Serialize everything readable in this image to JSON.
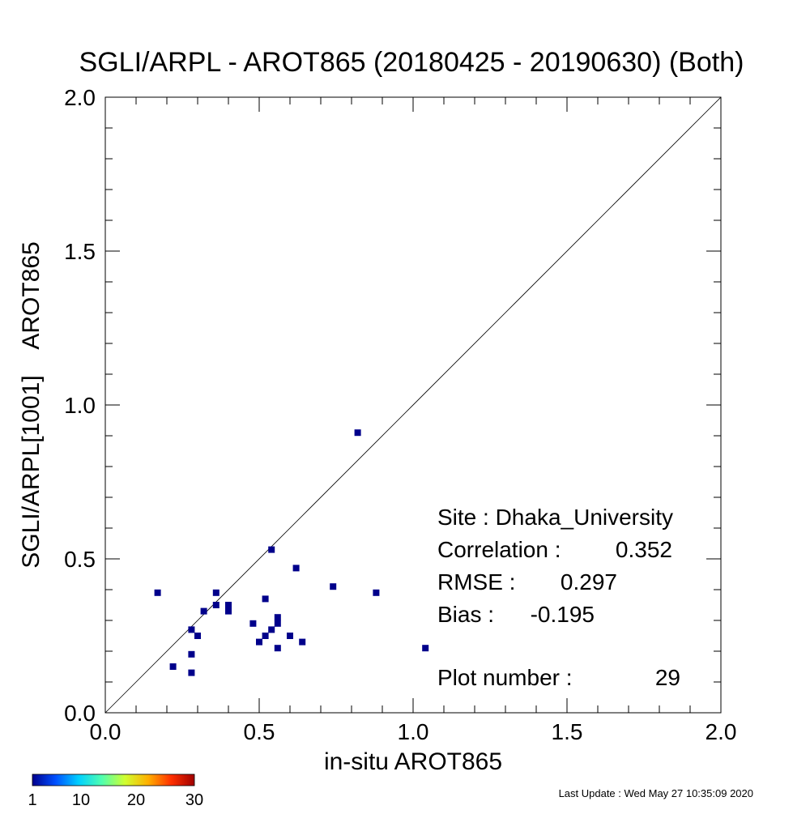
{
  "chart_data": {
    "type": "scatter",
    "title": "SGLI/ARPL - AROT865 (20180425 - 20190630) (Both)",
    "xlabel": "in-situ AROT865",
    "ylabel": "SGLI/ARPL[1001]    AROT865",
    "xlim": [
      0.0,
      2.0
    ],
    "ylim": [
      0.0,
      2.0
    ],
    "x_ticks": [
      "0.0",
      "0.5",
      "1.0",
      "1.5",
      "2.0"
    ],
    "y_ticks": [
      "0.0",
      "0.5",
      "1.0",
      "1.5",
      "2.0"
    ],
    "grid": false,
    "reference_line": "1:1 diagonal",
    "point_color": "#00008b",
    "points": [
      {
        "x": 0.17,
        "y": 0.39
      },
      {
        "x": 0.22,
        "y": 0.15
      },
      {
        "x": 0.28,
        "y": 0.27
      },
      {
        "x": 0.28,
        "y": 0.19
      },
      {
        "x": 0.28,
        "y": 0.13
      },
      {
        "x": 0.3,
        "y": 0.25
      },
      {
        "x": 0.32,
        "y": 0.33
      },
      {
        "x": 0.36,
        "y": 0.39
      },
      {
        "x": 0.36,
        "y": 0.35
      },
      {
        "x": 0.4,
        "y": 0.35
      },
      {
        "x": 0.4,
        "y": 0.33
      },
      {
        "x": 0.48,
        "y": 0.29
      },
      {
        "x": 0.5,
        "y": 0.23
      },
      {
        "x": 0.52,
        "y": 0.37
      },
      {
        "x": 0.52,
        "y": 0.25
      },
      {
        "x": 0.54,
        "y": 0.53
      },
      {
        "x": 0.54,
        "y": 0.27
      },
      {
        "x": 0.56,
        "y": 0.31
      },
      {
        "x": 0.56,
        "y": 0.29
      },
      {
        "x": 0.56,
        "y": 0.21
      },
      {
        "x": 0.6,
        "y": 0.25
      },
      {
        "x": 0.62,
        "y": 0.47
      },
      {
        "x": 0.64,
        "y": 0.23
      },
      {
        "x": 0.74,
        "y": 0.41
      },
      {
        "x": 0.82,
        "y": 0.91
      },
      {
        "x": 0.88,
        "y": 0.39
      },
      {
        "x": 1.04,
        "y": 0.21
      }
    ],
    "stats": {
      "site": "Site : Dhaka_University",
      "correlation_label": "Correlation :",
      "correlation_value": "0.352",
      "rmse_label": "RMSE :",
      "rmse_value": "0.297",
      "bias_label": "Bias :",
      "bias_value": "-0.195",
      "plot_number_label": "Plot number :",
      "plot_number_value": "29"
    },
    "colorbar": {
      "labels": [
        "1",
        "10",
        "20",
        "30"
      ],
      "colors": [
        "#00008f",
        "#0050ff",
        "#00d0ff",
        "#50ffb0",
        "#d0ff30",
        "#ffb000",
        "#ff3000",
        "#a00000"
      ]
    }
  },
  "footer": {
    "last_update": "Last Update : Wed May 27 10:35:09 2020"
  }
}
